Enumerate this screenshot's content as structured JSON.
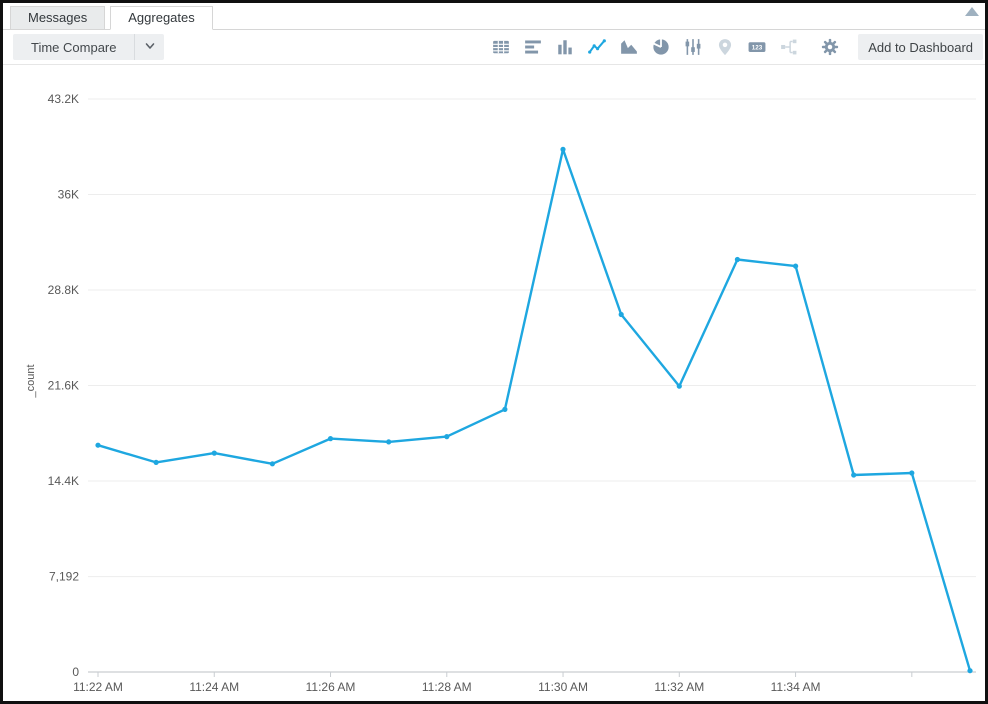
{
  "tabs": {
    "items": [
      {
        "label": "Messages",
        "active": false
      },
      {
        "label": "Aggregates",
        "active": true
      }
    ]
  },
  "toolbar": {
    "time_compare_label": "Time Compare",
    "add_to_dashboard_label": "Add to Dashboard",
    "single_value_text": "123",
    "icons": [
      {
        "name": "table-icon",
        "state": "default"
      },
      {
        "name": "bar-chart-icon",
        "state": "default"
      },
      {
        "name": "column-chart-icon",
        "state": "default"
      },
      {
        "name": "line-chart-icon",
        "state": "active"
      },
      {
        "name": "area-chart-icon",
        "state": "default"
      },
      {
        "name": "pie-chart-icon",
        "state": "default"
      },
      {
        "name": "box-plot-icon",
        "state": "default"
      },
      {
        "name": "map-icon",
        "state": "disabled"
      },
      {
        "name": "single-value-icon",
        "state": "default"
      },
      {
        "name": "transaction-icon",
        "state": "disabled"
      },
      {
        "name": "settings-gear-icon",
        "state": "default"
      }
    ],
    "colors": {
      "icon_default": "#8296aa",
      "icon_active": "#1ea7e0",
      "icon_disabled": "#ccd6de"
    }
  },
  "chart_data": {
    "type": "line",
    "title": "",
    "series_name": "_count",
    "ylabel": "_count",
    "xlabel": "",
    "legend": "none",
    "grid": "horizontal-only",
    "x": [
      "11:22 AM",
      "11:23 AM",
      "11:24 AM",
      "11:25 AM",
      "11:26 AM",
      "11:27 AM",
      "11:28 AM",
      "11:29 AM",
      "11:30 AM",
      "11:31 AM",
      "11:32 AM",
      "11:33 AM",
      "11:34 AM",
      "11:35 AM",
      "11:36 AM",
      "11:37 AM"
    ],
    "values": [
      17100,
      15800,
      16500,
      15700,
      17600,
      17350,
      17750,
      19800,
      39400,
      26950,
      21550,
      31100,
      30600,
      14850,
      15000,
      100
    ],
    "ylim": [
      0,
      43200
    ],
    "yticks": [
      {
        "value": 0,
        "label": "0"
      },
      {
        "value": 7192,
        "label": "7,192"
      },
      {
        "value": 14400,
        "label": "14.4K"
      },
      {
        "value": 21600,
        "label": "21.6K"
      },
      {
        "value": 28800,
        "label": "28.8K"
      },
      {
        "value": 36000,
        "label": "36K"
      },
      {
        "value": 43200,
        "label": "43.2K"
      }
    ],
    "xticks": [
      {
        "index": 0,
        "label": "11:22 AM"
      },
      {
        "index": 2,
        "label": "11:24 AM"
      },
      {
        "index": 4,
        "label": "11:26 AM"
      },
      {
        "index": 6,
        "label": "11:28 AM"
      },
      {
        "index": 8,
        "label": "11:30 AM"
      },
      {
        "index": 10,
        "label": "11:32 AM"
      },
      {
        "index": 12,
        "label": "11:34 AM"
      },
      {
        "index": 14,
        "label": ""
      }
    ],
    "line_color": "#1ea7e0",
    "grid_color": "#ededed",
    "axis_color": "#c9cdd1",
    "label_color": "#595959"
  }
}
